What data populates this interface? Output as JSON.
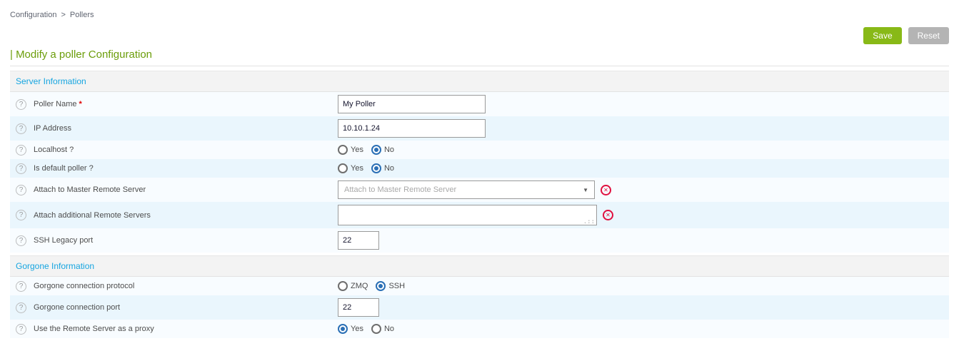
{
  "breadcrumb": {
    "items": [
      {
        "label": "Configuration"
      },
      {
        "label": "Pollers"
      }
    ],
    "separator": ">"
  },
  "toolbar": {
    "save": "Save",
    "reset": "Reset"
  },
  "page_title": "| Modify a poller Configuration",
  "icons": {
    "help": "?",
    "dropdown": "▼",
    "clear": "✕",
    "resize": ".::",
    "required": "*"
  },
  "colors": {
    "accent_green": "#88b917",
    "title_green": "#6b9d0a",
    "section_blue": "#16a5e0",
    "radio_blue": "#2a6fb5",
    "clear_red": "#e0103f",
    "row_light": "#f8fcff",
    "row_alt": "#eaf6fd"
  },
  "sections": [
    {
      "title": "Server Information",
      "rows": [
        {
          "label": "Poller Name",
          "required": true,
          "type": "text",
          "value": "My Poller"
        },
        {
          "label": "IP Address",
          "type": "text",
          "value": "10.10.1.24"
        },
        {
          "label": "Localhost ?",
          "type": "radio",
          "options": [
            {
              "label": "Yes",
              "selected": false
            },
            {
              "label": "No",
              "selected": true
            }
          ]
        },
        {
          "label": "Is default poller ?",
          "type": "radio",
          "options": [
            {
              "label": "Yes",
              "selected": false
            },
            {
              "label": "No",
              "selected": true
            }
          ]
        },
        {
          "label": "Attach to Master Remote Server",
          "type": "select",
          "placeholder": "Attach to Master Remote Server",
          "clearable": true
        },
        {
          "label": "Attach additional Remote Servers",
          "type": "textarea",
          "value": "",
          "clearable": true
        },
        {
          "label": "SSH Legacy port",
          "type": "number",
          "value": "22"
        }
      ]
    },
    {
      "title": "Gorgone Information",
      "rows": [
        {
          "label": "Gorgone connection protocol",
          "type": "radio",
          "options": [
            {
              "label": "ZMQ",
              "selected": false
            },
            {
              "label": "SSH",
              "selected": true
            }
          ]
        },
        {
          "label": "Gorgone connection port",
          "type": "number",
          "value": "22"
        },
        {
          "label": "Use the Remote Server as a proxy",
          "type": "radio",
          "options": [
            {
              "label": "Yes",
              "selected": true
            },
            {
              "label": "No",
              "selected": false
            }
          ]
        }
      ]
    }
  ]
}
